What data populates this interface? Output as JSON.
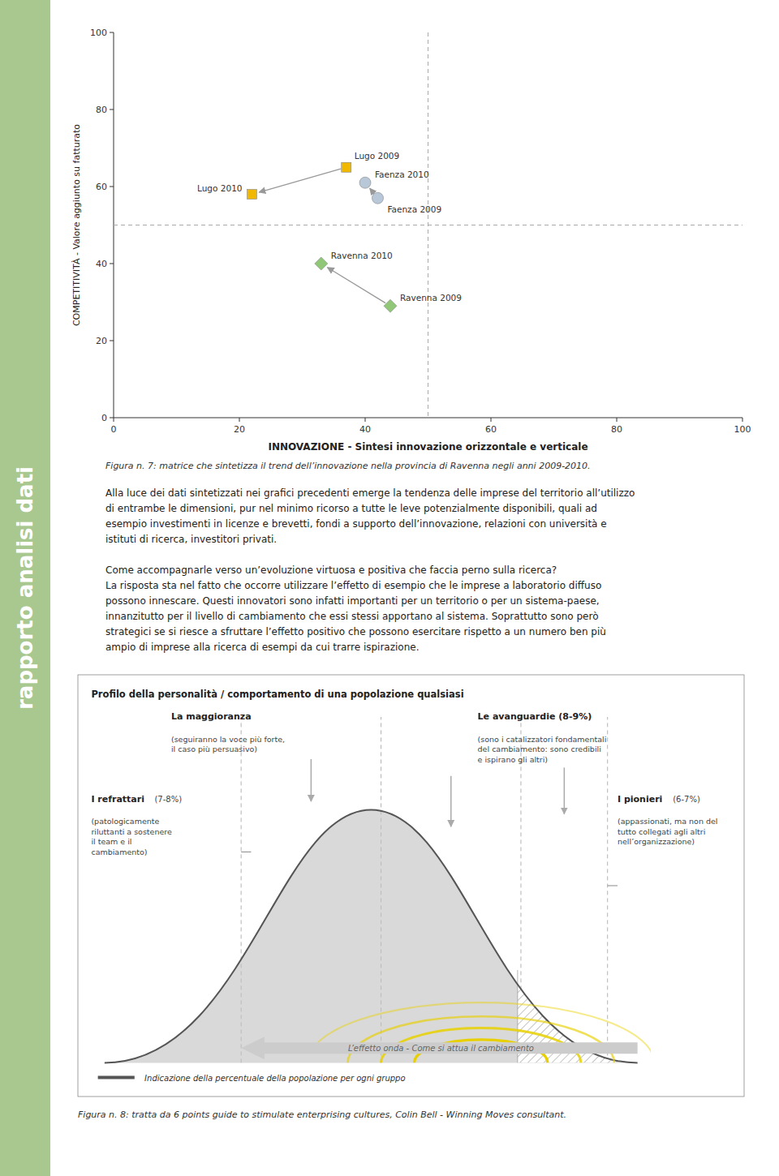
{
  "chart_data": {
    "type": "scatter",
    "x_label": "INNOVAZIONE - Sintesi innovazione orizzontale e verticale",
    "y_label": "COMPETITIVITÀ - Valore aggiunto su fatturato",
    "xlim": [
      0,
      100
    ],
    "ylim": [
      0,
      100
    ],
    "xticks": [
      0,
      20,
      40,
      60,
      80,
      100
    ],
    "yticks": [
      0,
      20,
      40,
      60,
      80,
      100
    ],
    "grid": false,
    "series": [
      {
        "color": "#f0b800",
        "marker": "square",
        "x": [
          22,
          37
        ],
        "values": [
          58,
          65
        ]
      },
      {
        "color": "#b8c8d8",
        "marker": "circle",
        "x": [
          40,
          42
        ],
        "values": [
          61,
          57
        ]
      },
      {
        "color": "#90c878",
        "marker": "diamond",
        "x": [
          33,
          44
        ],
        "values": [
          40,
          29
        ]
      }
    ],
    "annotations": [
      {
        "text": "Lugo 2010",
        "x": 22,
        "y": 58
      },
      {
        "text": "Lugo 2009",
        "x": 37,
        "y": 65
      },
      {
        "text": "Faenza 2010",
        "x": 40,
        "y": 61
      },
      {
        "text": "Faenza 2009",
        "x": 42,
        "y": 57
      },
      {
        "text": "Ravenna 2010",
        "x": 33,
        "y": 40
      },
      {
        "text": "Ravenna 2009",
        "x": 44,
        "y": 29
      }
    ],
    "arrows": [
      {
        "x1": 37,
        "y1": 65,
        "x2": 22,
        "y2": 58
      },
      {
        "x1": 42,
        "y1": 57,
        "x2": 40,
        "y2": 61
      },
      {
        "x1": 44,
        "y1": 29,
        "x2": 33,
        "y2": 40
      }
    ],
    "reference_lines": [
      {
        "axis": "y",
        "value": 50
      },
      {
        "axis": "x",
        "value": 50
      }
    ]
  },
  "page": {
    "sidebar_text": "rapporto analisi dati",
    "caption_1": "Figura n. 7: matrice che sintetizza il trend dell’innovazione nella provincia di Ravenna negli anni 2009-2010.",
    "body_1": "Alla luce dei dati sintetizzati nei grafici precedenti emerge la tendenza delle imprese del territorio all’utilizzo\ndi entrambe le dimensioni, pur nel minimo ricorso a tutte le leve potenzialmente disponibili, quali ad\nesempio investimenti in licenze e brevetti, fondi a supporto dell’innovazione, relazioni con università e\nistituti di ricerca, investitori privati.",
    "body_2": "Come accompagnarle verso un’evoluzione virtuosa e positiva che faccia perno sulla ricerca?\nLa risposta sta nel fatto che occorre utilizzare l’effetto di esempio che le imprese a laboratorio diffuso\npossono innescare.  Questi innovatori sono infatti importanti per un territorio o per un sistema-paese,\ninnanzitutto per il livello di cambiamento che essi stessi apportano al sistema.  Soprattutto sono però\nstrategici se si riesce a sfruttare l’effetto positivo che possono esercitare rispetto a un numero ben più\nampio di imprese alla ricerca di esempi da cui trarre ispirazione.",
    "diagram": {
      "title": "Profilo della personalità / comportamento di una popolazione qualsiasi",
      "wave_label": "L’effetto onda - Come si attua il cambiamento",
      "groups": [
        {
          "name": "La maggioranza",
          "description": "(seguiranno la voce più forte,\nil caso più persuasivo)"
        },
        {
          "name": "Le avanguardie (8-9%)",
          "description": "(sono i catalizzatori fondamentali\ndel cambiamento: sono credibili\ne ispirano gli altri)"
        },
        {
          "name": "I refrattari",
          "share": "(7-8%)",
          "description": "(patologicamente\nriluttanti a sostenere\nil team e il\ncambiamento)"
        },
        {
          "name": "I pionieri",
          "share": "(6-7%)",
          "description": "(appassionati, ma non del\ntutto collegati agli altri\nnell’organizzazione)"
        }
      ],
      "legend_text": "Indicazione della percentuale della popolazione per ogni gruppo"
    },
    "caption_2": "Figura n. 8: tratta da 6 points guide to stimulate enterprising cultures, Colin Bell - Winning Moves consultant."
  }
}
